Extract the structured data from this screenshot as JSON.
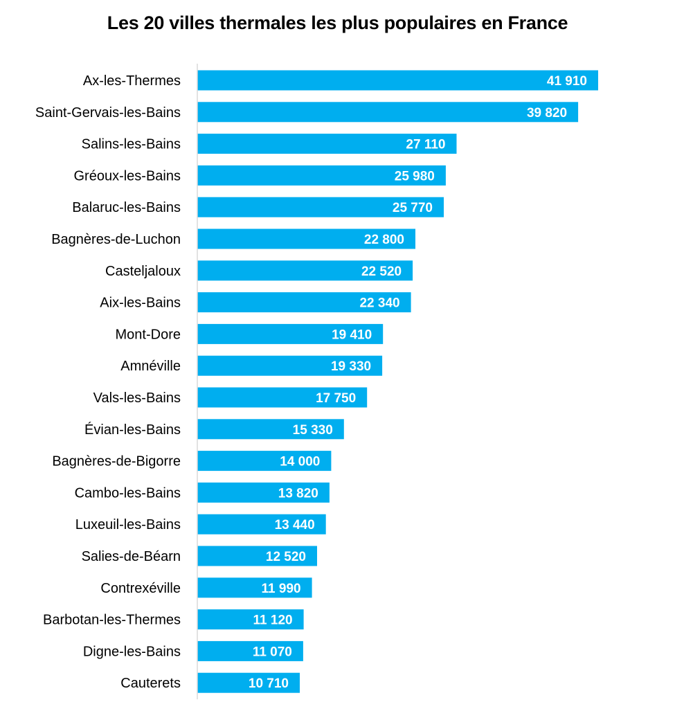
{
  "chart_data": {
    "type": "bar",
    "orientation": "horizontal",
    "title": "Les 20 villes thermales les plus populaires en France",
    "xlabel": "",
    "ylabel": "",
    "categories": [
      "Ax-les-Thermes",
      "Saint-Gervais-les-Bains",
      "Salins-les-Bains",
      "Gréoux-les-Bains",
      "Balaruc-les-Bains",
      "Bagnères-de-Luchon",
      "Casteljaloux",
      "Aix-les-Bains",
      "Mont-Dore",
      "Amnéville",
      "Vals-les-Bains",
      "Évian-les-Bains",
      "Bagnères-de-Bigorre",
      "Cambo-les-Bains",
      "Luxeuil-les-Bains",
      "Salies-de-Béarn",
      "Contrexéville",
      "Barbotan-les-Thermes",
      "Digne-les-Bains",
      "Cauterets"
    ],
    "values": [
      41910,
      39820,
      27110,
      25980,
      25770,
      22800,
      22520,
      22340,
      19410,
      19330,
      17750,
      15330,
      14000,
      13820,
      13440,
      12520,
      11990,
      11120,
      11070,
      10710
    ],
    "value_labels": [
      "41 910",
      "39 820",
      "27 110",
      "25 980",
      "25 770",
      "22 800",
      "22 520",
      "22 340",
      "19 410",
      "19 330",
      "17 750",
      "15 330",
      "14 000",
      "13 820",
      "13 440",
      "12 520",
      "11 990",
      "11 120",
      "11 070",
      "10 710"
    ],
    "xlim": [
      0,
      41910
    ],
    "bar_color": "#00AEEF",
    "axis_color": "#D9D9D9",
    "grid": false,
    "legend": "none"
  }
}
